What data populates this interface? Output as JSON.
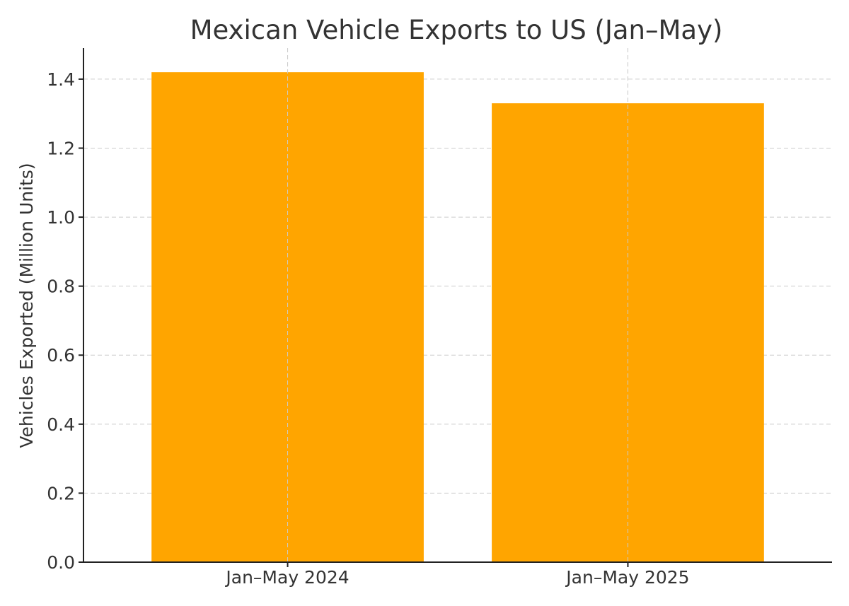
{
  "chart_data": {
    "type": "bar",
    "title": "Mexican Vehicle Exports to US (Jan–May)",
    "xlabel": "",
    "ylabel": "Vehicles Exported (Million Units)",
    "categories": [
      "Jan–May 2024",
      "Jan–May 2025"
    ],
    "values": [
      1.42,
      1.33
    ],
    "ylim": [
      0,
      1.49
    ],
    "yticks": [
      0.0,
      0.2,
      0.4,
      0.6,
      0.8,
      1.0,
      1.2,
      1.4
    ],
    "ytick_labels": [
      "0.0",
      "0.2",
      "0.4",
      "0.6",
      "0.8",
      "1.0",
      "1.2",
      "1.4"
    ],
    "bar_color": "#FFA500",
    "grid": true,
    "legend": null
  }
}
